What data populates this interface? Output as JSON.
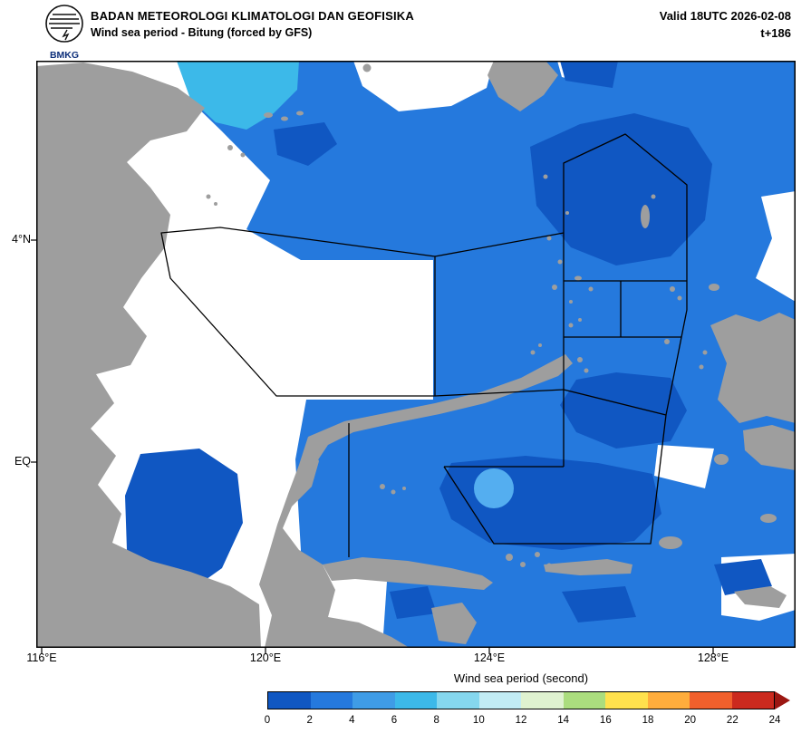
{
  "header": {
    "agency": "BADAN METEOROLOGI KLIMATOLOGI DAN GEOFISIKA",
    "product": "Wind sea period - Bitung (forced by GFS)",
    "valid": "Valid 18UTC 2026-02-08",
    "step": "t+186",
    "logo_text": "BMKG"
  },
  "axes": {
    "y_labels": {
      "lat4n": "4°N",
      "eq": "EQ"
    },
    "x_labels": {
      "e116": "116°E",
      "e120": "120°E",
      "e124": "124°E",
      "e128": "128°E"
    }
  },
  "colorbar": {
    "title": "Wind sea period (second)",
    "ticks": [
      0,
      2,
      4,
      6,
      8,
      10,
      12,
      14,
      16,
      18,
      20,
      22,
      24
    ],
    "colors": [
      "#1057c2",
      "#2579dd",
      "#3f9ce6",
      "#3cb9e9",
      "#85d7ee",
      "#c2ecf4",
      "#dff2d0",
      "#abdd7e",
      "#ffe14d",
      "#ffad3c",
      "#f1602c",
      "#cb2a1e"
    ],
    "arrow_color": "#9c1712"
  },
  "map": {
    "colors": {
      "sea_main": "#2579dd",
      "sea_dark": "#1057c2",
      "sea_cyan": "#3cb9e9",
      "sea_spot": "#54aef0",
      "calm": "#ffffff",
      "land": "#9e9e9e",
      "coast": "#6e6e6e",
      "border": "#000000"
    }
  }
}
